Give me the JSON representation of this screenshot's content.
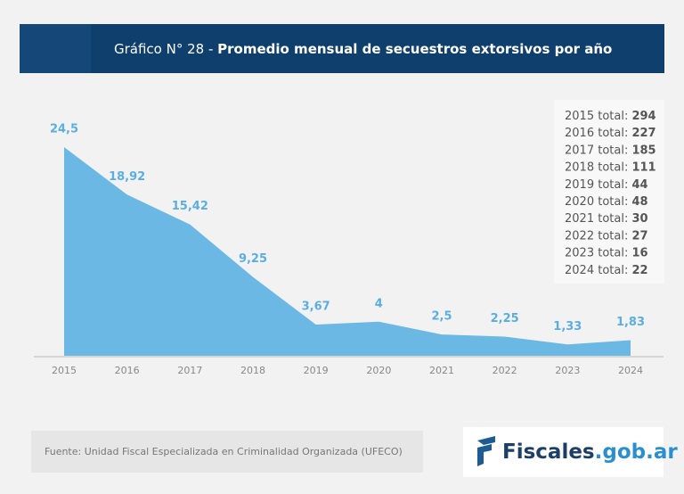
{
  "header": {
    "prefix": "Gráfico N° 28 - ",
    "title": "Promedio mensual de secuestros extorsivos por año"
  },
  "chart_data": {
    "type": "area",
    "color": "#6bb8e5",
    "categories": [
      "2015",
      "2016",
      "2017",
      "2018",
      "2019",
      "2020",
      "2021",
      "2022",
      "2023",
      "2024"
    ],
    "values": [
      24.5,
      18.92,
      15.42,
      9.25,
      3.67,
      4,
      2.5,
      2.25,
      1.33,
      1.83
    ],
    "value_labels": [
      "24,5",
      "18,92",
      "15,42",
      "9,25",
      "3,67",
      "4",
      "2,5",
      "2,25",
      "1,33",
      "1,83"
    ]
  },
  "totals": [
    {
      "label": "2015 total:",
      "total": 294
    },
    {
      "label": "2016 total:",
      "total": 227
    },
    {
      "label": "2017 total:",
      "total": 185
    },
    {
      "label": "2018 total:",
      "total": 111
    },
    {
      "label": "2019 total:",
      "total": 44
    },
    {
      "label": "2020 total:",
      "total": 48
    },
    {
      "label": "2021 total:",
      "total": 30
    },
    {
      "label": "2022 total:",
      "total": 27
    },
    {
      "label": "2023 total:",
      "total": 16
    },
    {
      "label": "2024 total:",
      "total": 22
    }
  ],
  "source": "Fuente: Unidad Fiscal Especializada en Criminalidad Organizada (UFECO)",
  "logo": {
    "main": "Fiscales",
    "suffix": ".gob.ar"
  }
}
